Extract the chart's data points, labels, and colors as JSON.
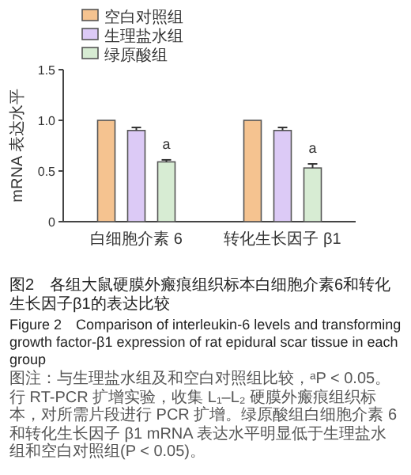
{
  "chart_data": {
    "type": "bar",
    "title": "图2　各组大鼠硬膜外瘢痕组织标本白细胞介素6和转化生长因子β1的表达比较",
    "subtitle": "Figure 2　Comparison of interleukin-6 levels and transforming growth factor-β1 expression of rat epidural scar tissue in each group",
    "ylabel": "mRNA 表达水平",
    "categories": [
      "白细胞介素 6",
      "转化生长因子 β1"
    ],
    "series": [
      {
        "name": "空白对照组",
        "color": "#f5c390",
        "values": [
          1.0,
          1.0
        ]
      },
      {
        "name": "生理盐水组",
        "color": "#dccaf6",
        "values": [
          0.9,
          0.9
        ],
        "errors": [
          0.03,
          0.03
        ]
      },
      {
        "name": "绿原酸组",
        "color": "#d7ecd3",
        "values": [
          0.59,
          0.53
        ],
        "errors": [
          0.02,
          0.04
        ],
        "value_labels": [
          "a",
          "a"
        ]
      }
    ],
    "ylim": [
      0,
      1.5
    ],
    "yticks": [
      0,
      0.5,
      {
        "value": 1,
        "label": "1.0"
      },
      1.5
    ],
    "legend": "top left",
    "grid": false,
    "annotations": [
      "图注：与生理盐水组及和空白对照组比较，ᵃP < 0.05。行 RT-PCR 扩增实验，收集 L₁–L₂ 硬膜外瘢痕组织标本，对所需片段进行 PCR 扩增。绿原酸组白细胞介素 6 和转化生长因子 β1 mRNA 表达水平明显低于生理盐水组和空白对照组(P < 0.05)。"
    ]
  }
}
